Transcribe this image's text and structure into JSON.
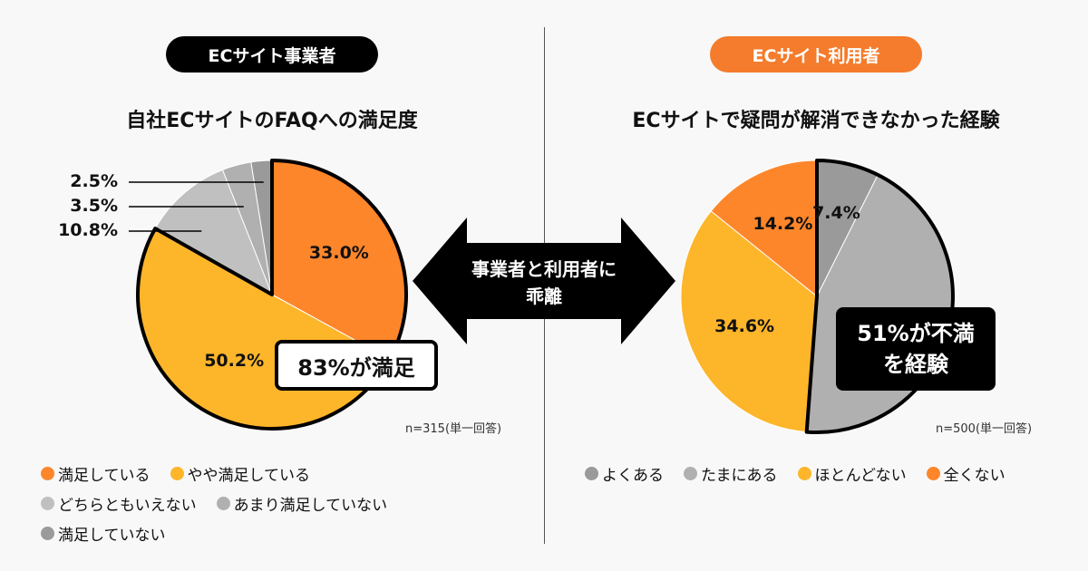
{
  "left": {
    "badge": "ECサイト事業者",
    "title": "自社ECサイトのFAQへの満足度",
    "note": "n=315(単一回答)",
    "callout": "83%が満足"
  },
  "right": {
    "badge": "ECサイト利用者",
    "title": "ECサイトで疑問が解消できなかった経験",
    "note": "n=500(単一回答)",
    "callout_line1": "51%が不満",
    "callout_line2": "を経験"
  },
  "arrow": {
    "line1": "事業者と利用者に",
    "line2": "乖離"
  },
  "colors": {
    "orange": "#fd862b",
    "yellow": "#fdb52a",
    "gray_light": "#c0c0c0",
    "gray_mid": "#b0b0b0",
    "gray_dark": "#9a9a9a",
    "badge_orange": "#f47c2c"
  },
  "chart_data": [
    {
      "type": "pie",
      "title": "自社ECサイトのFAQへの満足度",
      "categories": [
        "満足している",
        "やや満足している",
        "どちらともいえない",
        "あまり満足していない",
        "満足していない"
      ],
      "values": [
        33.0,
        50.2,
        10.8,
        3.5,
        2.5
      ],
      "labels": [
        "33.0%",
        "50.2%",
        "10.8%",
        "3.5%",
        "2.5%"
      ],
      "colors": [
        "#fd862b",
        "#fdb52a",
        "#c0c0c0",
        "#b0b0b0",
        "#9a9a9a"
      ],
      "highlighted": [
        0,
        1
      ],
      "legend_position": "bottom"
    },
    {
      "type": "pie",
      "title": "ECサイトで疑問が解消できなかった経験",
      "categories": [
        "よくある",
        "たまにある",
        "ほとんどない",
        "全くない"
      ],
      "values": [
        7.4,
        43.8,
        34.6,
        14.2
      ],
      "labels": [
        "7.4%",
        "43.8%",
        "34.6%",
        "14.2%"
      ],
      "colors": [
        "#9a9a9a",
        "#b0b0b0",
        "#fdb52a",
        "#fd862b"
      ],
      "highlighted": [
        0,
        1
      ],
      "legend_position": "bottom"
    }
  ]
}
